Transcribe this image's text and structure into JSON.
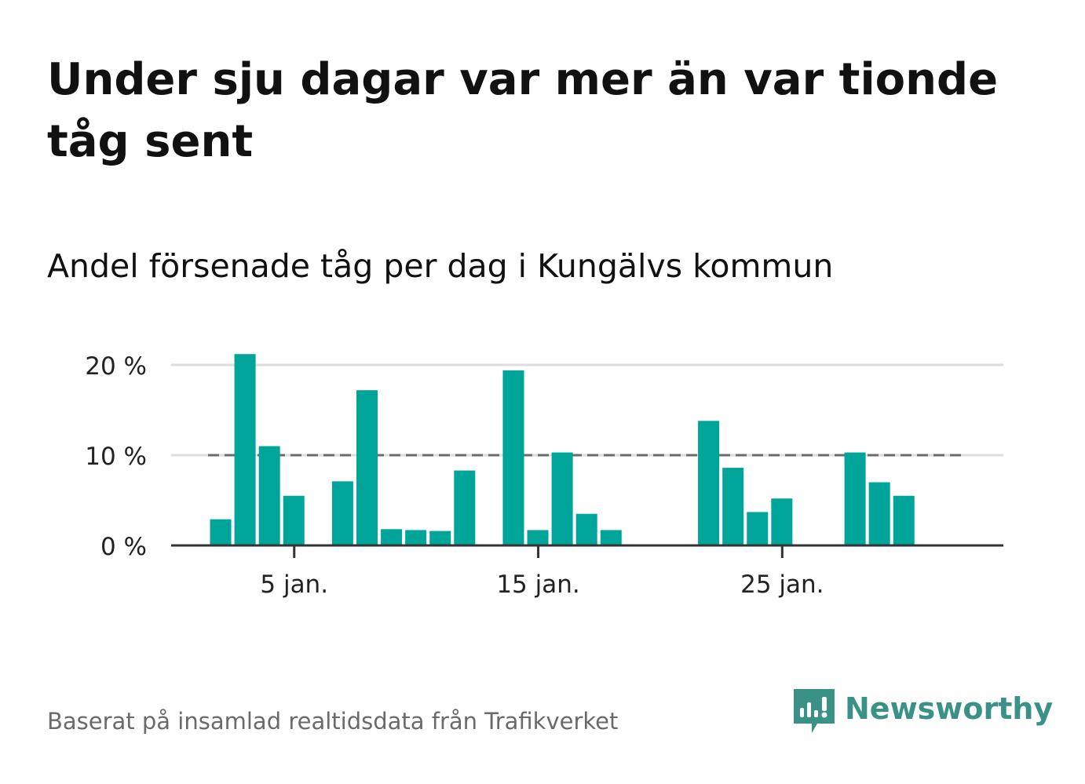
{
  "title": "Under sju dagar var mer än var tionde tåg sent",
  "subtitle": "Andel försenade tåg per dag i Kungälvs kommun",
  "footer": "Baserat på insamlad realtidsdata från Trafikverket",
  "brand": {
    "name": "Newsworthy",
    "icon": "newsworthy-logo-icon",
    "color": "#3a9186"
  },
  "colors": {
    "bar": "#00a599",
    "grid": "#dddddd",
    "axis": "#333333",
    "reference": "#6b6b6b"
  },
  "chart_data": {
    "type": "bar",
    "x": [
      1,
      2,
      3,
      4,
      5,
      6,
      7,
      8,
      9,
      10,
      11,
      12,
      13,
      14,
      15,
      16,
      17,
      18,
      19,
      20,
      21,
      22,
      23,
      24,
      25,
      26,
      27,
      28,
      29,
      30,
      31
    ],
    "values": [
      0,
      2.9,
      21.2,
      11.0,
      5.5,
      0,
      7.1,
      17.2,
      1.8,
      1.7,
      1.6,
      8.3,
      0,
      19.4,
      1.7,
      10.3,
      3.5,
      1.7,
      0,
      0,
      0,
      13.8,
      8.6,
      3.7,
      5.2,
      0,
      0,
      10.3,
      7.0,
      5.5,
      0
    ],
    "x_ticks": [
      {
        "x": 5,
        "label": "5 jan."
      },
      {
        "x": 15,
        "label": "15 jan."
      },
      {
        "x": 25,
        "label": "25 jan."
      }
    ],
    "y_ticks": [
      {
        "value": 0,
        "label": "0 %"
      },
      {
        "value": 10,
        "label": "10 %"
      },
      {
        "value": 20,
        "label": "20 %"
      }
    ],
    "ylim": [
      0,
      20
    ],
    "reference_line": {
      "value": 10,
      "style": "dashed"
    },
    "xlabel": "",
    "ylabel": "",
    "grid": true,
    "legend": "none"
  }
}
